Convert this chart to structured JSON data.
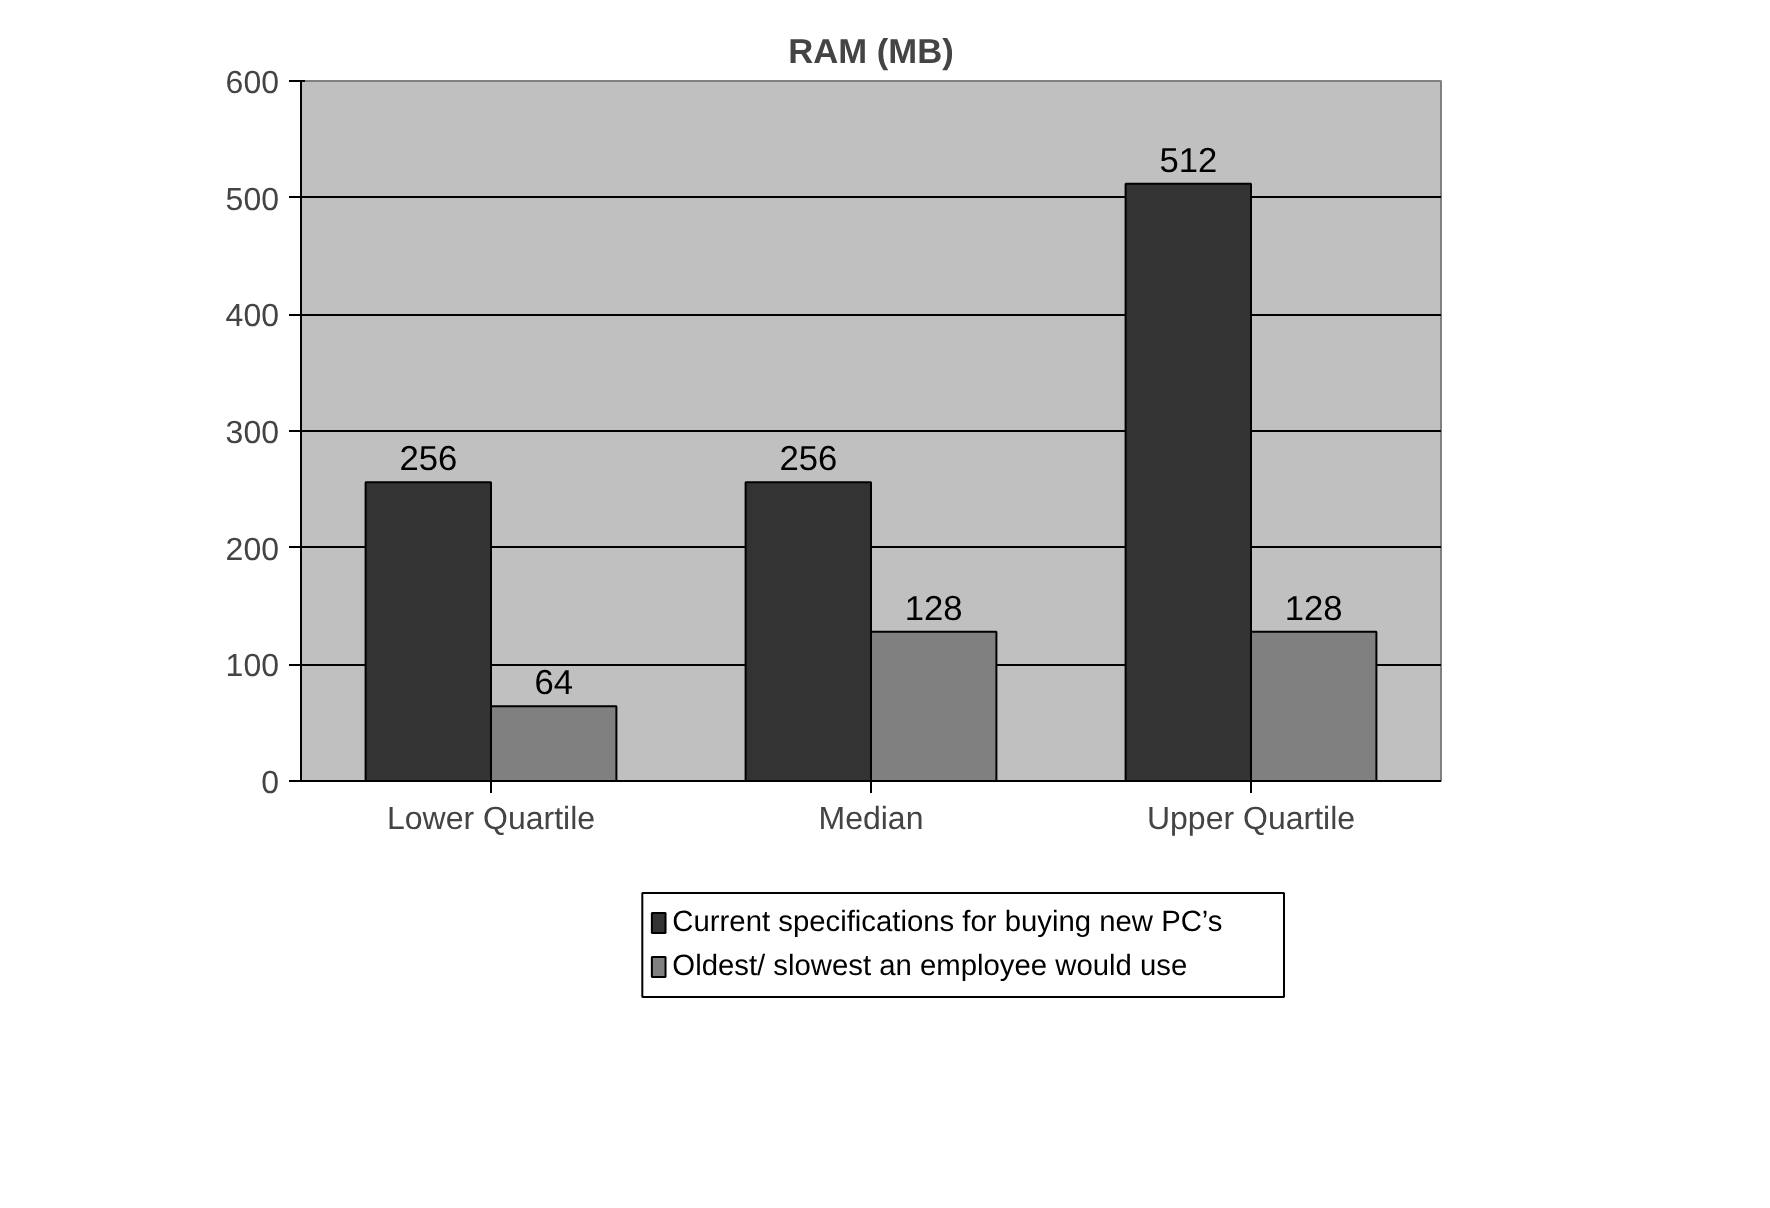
{
  "chart_data": {
    "type": "bar",
    "title": "RAM (MB)",
    "categories": [
      "Lower Quartile",
      "Median",
      "Upper Quartile"
    ],
    "series": [
      {
        "name": "Current specifications for buying new PC’s",
        "color": "#333333",
        "values": [
          256,
          256,
          512
        ]
      },
      {
        "name": "Oldest/ slowest an employee would use",
        "color": "#808080",
        "values": [
          64,
          128,
          128
        ]
      }
    ],
    "ylim": [
      0,
      600
    ],
    "yticks": [
      0,
      100,
      200,
      300,
      400,
      500,
      600
    ],
    "grid": "y",
    "legend": "bottom",
    "data_labels": true
  }
}
